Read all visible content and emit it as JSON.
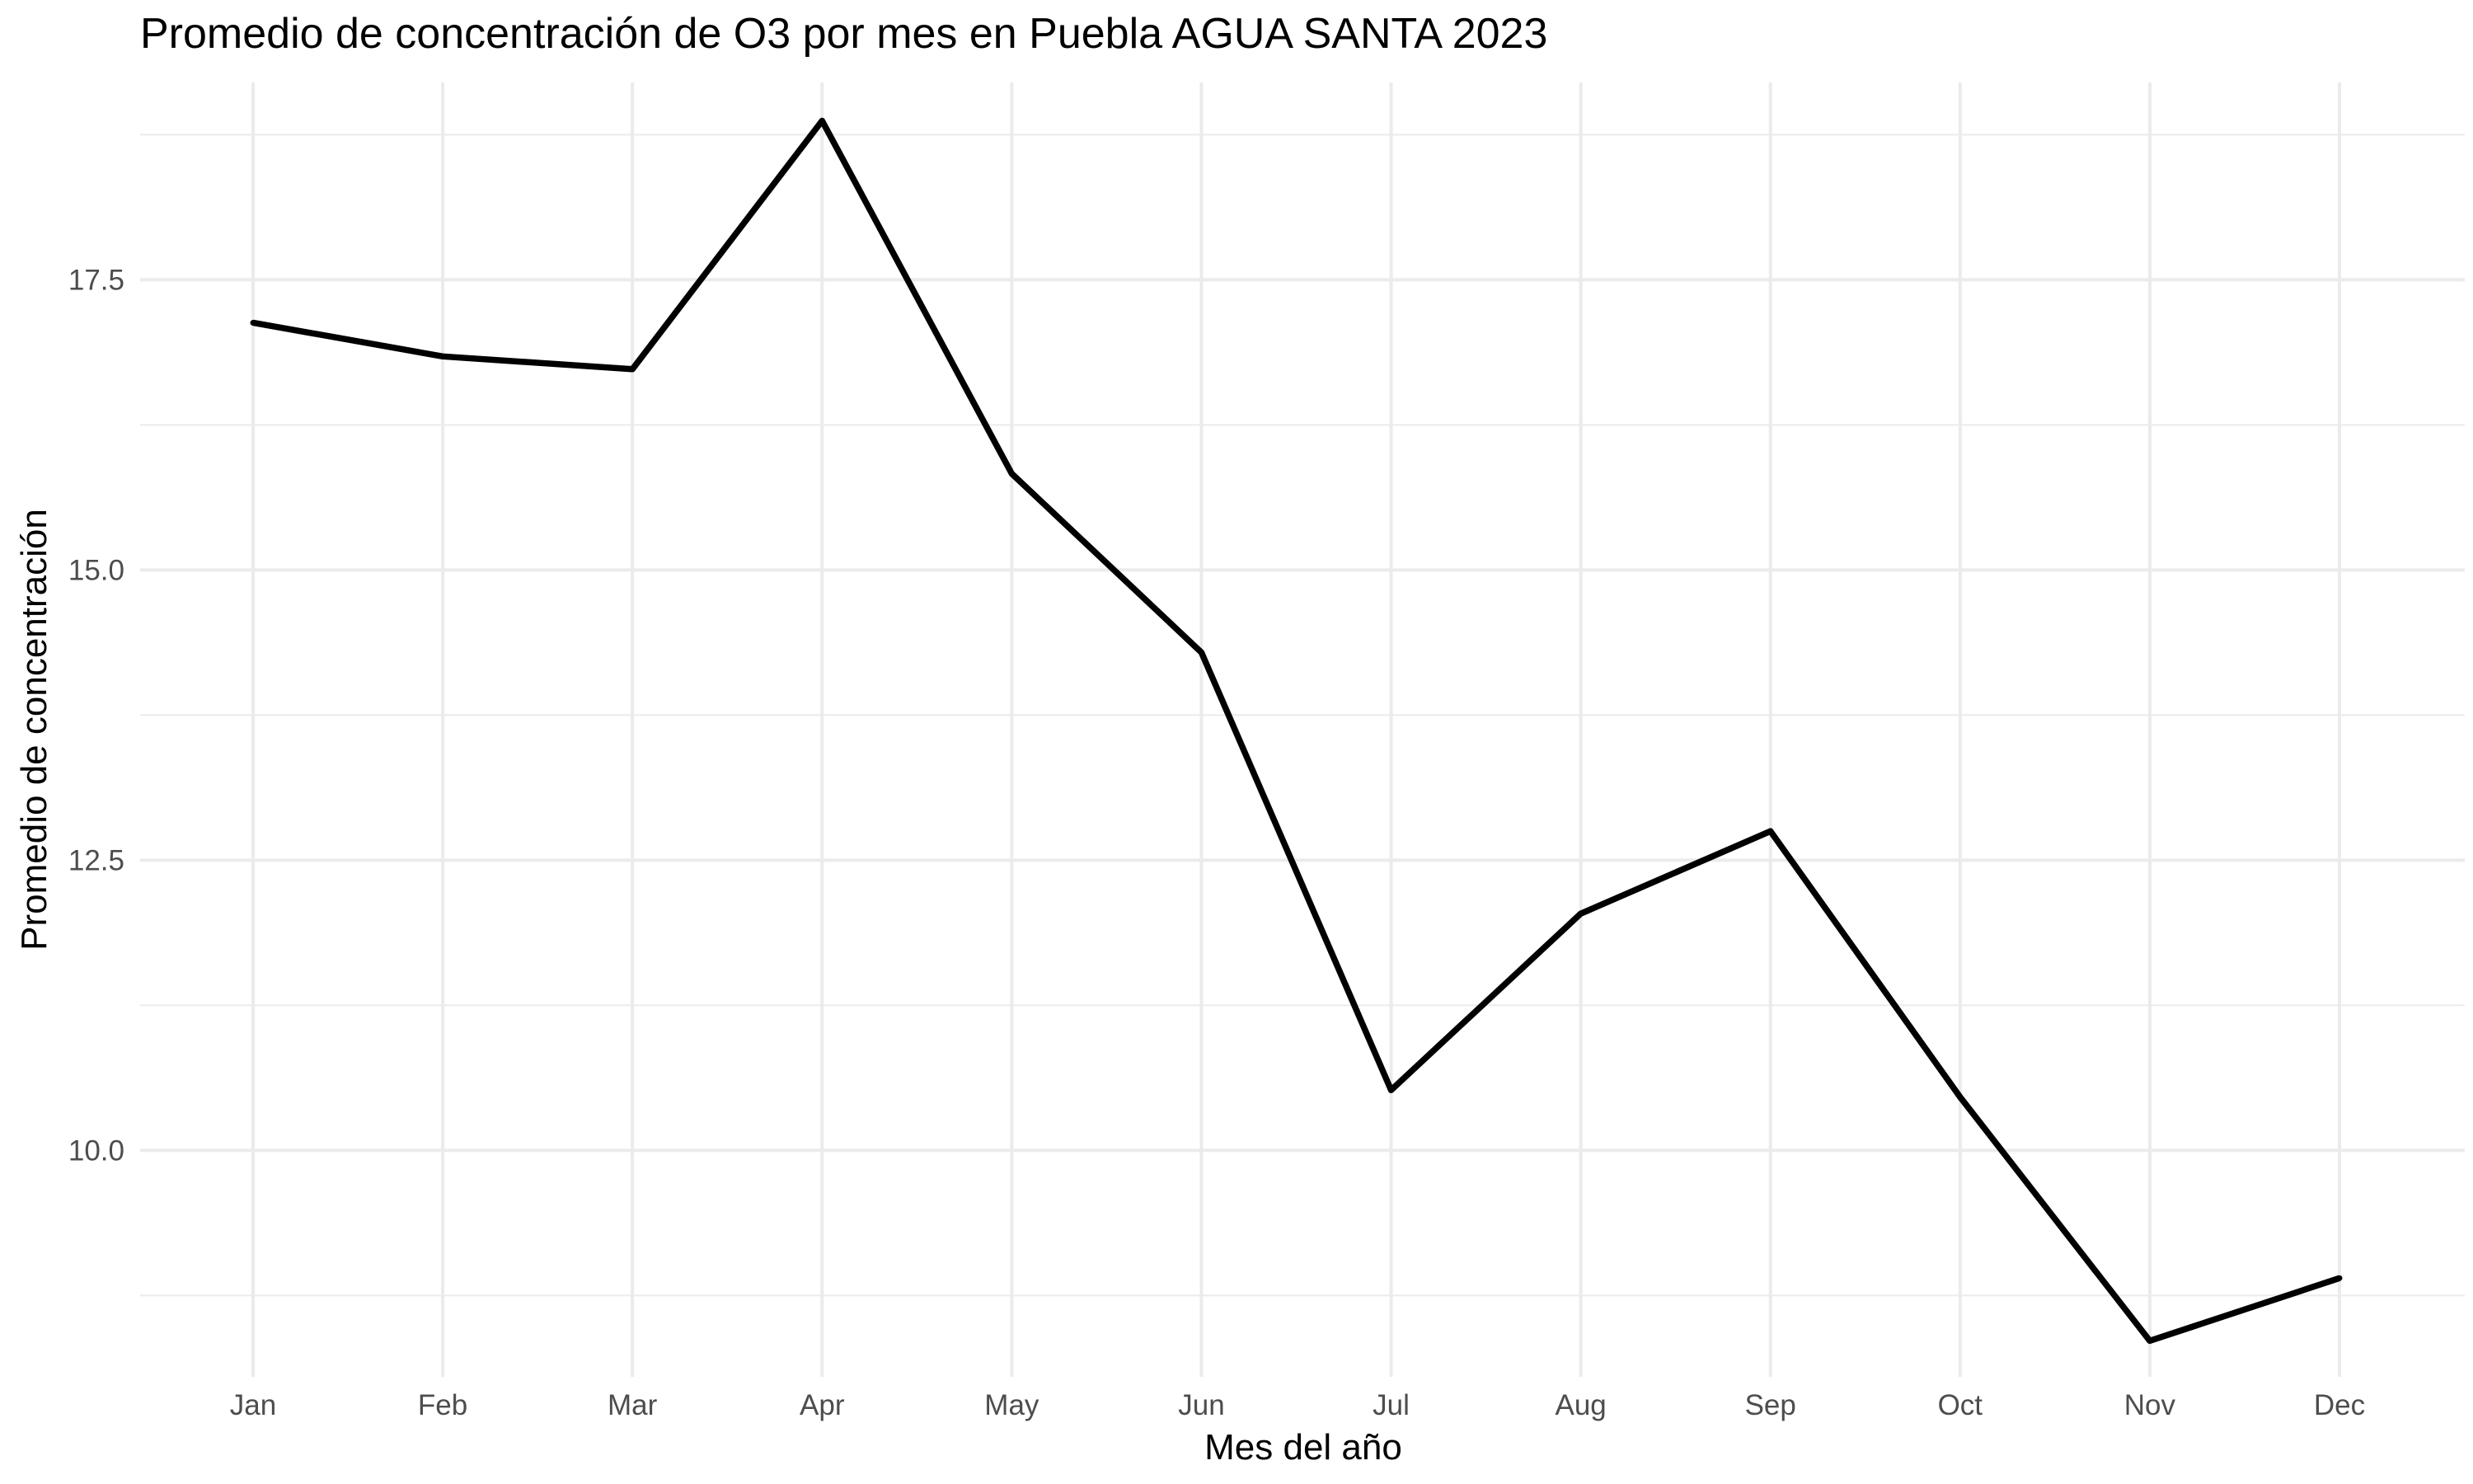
{
  "chart_data": {
    "type": "line",
    "title": "Promedio de concentración de O3 por mes en Puebla AGUA SANTA 2023",
    "xlabel": "Mes del año",
    "ylabel": "Promedio de concentración",
    "categories": [
      "Jan",
      "Feb",
      "Mar",
      "Apr",
      "May",
      "Jun",
      "Jul",
      "Aug",
      "Sep",
      "Oct",
      "Nov",
      "Dec"
    ],
    "series": [
      {
        "values": [
          17.13,
          16.84,
          16.73,
          18.87,
          15.83,
          14.29,
          10.52,
          12.04,
          12.75,
          10.46,
          8.36,
          8.9
        ],
        "color": "#000000"
      }
    ],
    "ylim": [
      8.05,
      19.2
    ],
    "yticks": [
      10.0,
      12.5,
      15.0,
      17.5
    ],
    "ytick_labels": [
      "10.0",
      "12.5",
      "15.0",
      "17.5"
    ],
    "y_minor_ticks": [
      8.75,
      11.25,
      13.75,
      16.25,
      18.75
    ],
    "grid": true,
    "legend": "none",
    "colors": {
      "background": "#ffffff",
      "grid": "#ebebeb",
      "tick_text": "#4d4d4d",
      "line": "#000000"
    }
  }
}
